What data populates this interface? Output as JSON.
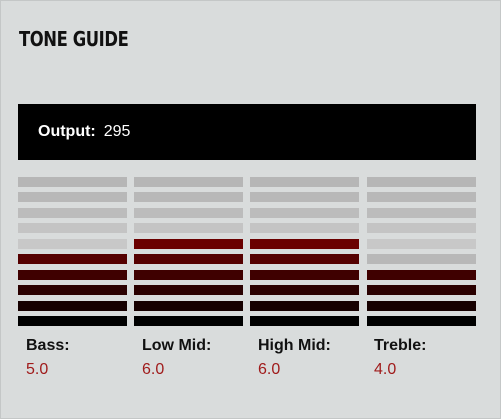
{
  "title": "TONE GUIDE",
  "output": {
    "label": "Output:",
    "value": "295"
  },
  "max_level": 10,
  "bands": [
    {
      "label": "Bass:",
      "value": "5.0",
      "level": 5
    },
    {
      "label": "Low Mid:",
      "value": "6.0",
      "level": 6
    },
    {
      "label": "High Mid:",
      "value": "6.0",
      "level": 6
    },
    {
      "label": "Treble:",
      "value": "4.0",
      "level": 4
    }
  ],
  "colors": {
    "panel": "#d9dcdc",
    "value_text": "#a01b1b",
    "lit_segments": [
      "#000000",
      "#160000",
      "#2a0000",
      "#3f0000",
      "#550000",
      "#6b0000",
      "#7e0000",
      "#8a0000",
      "#960000",
      "#a00000"
    ],
    "unlit_segments": [
      "#2a2a2a",
      "#4f4f4f",
      "#8a8a8a",
      "#a4a4a4",
      "#b8b8b8",
      "#c8c8c8",
      "#c4c4c4",
      "#bcbcbc",
      "#b8b8b8",
      "#b6b6b6"
    ]
  }
}
